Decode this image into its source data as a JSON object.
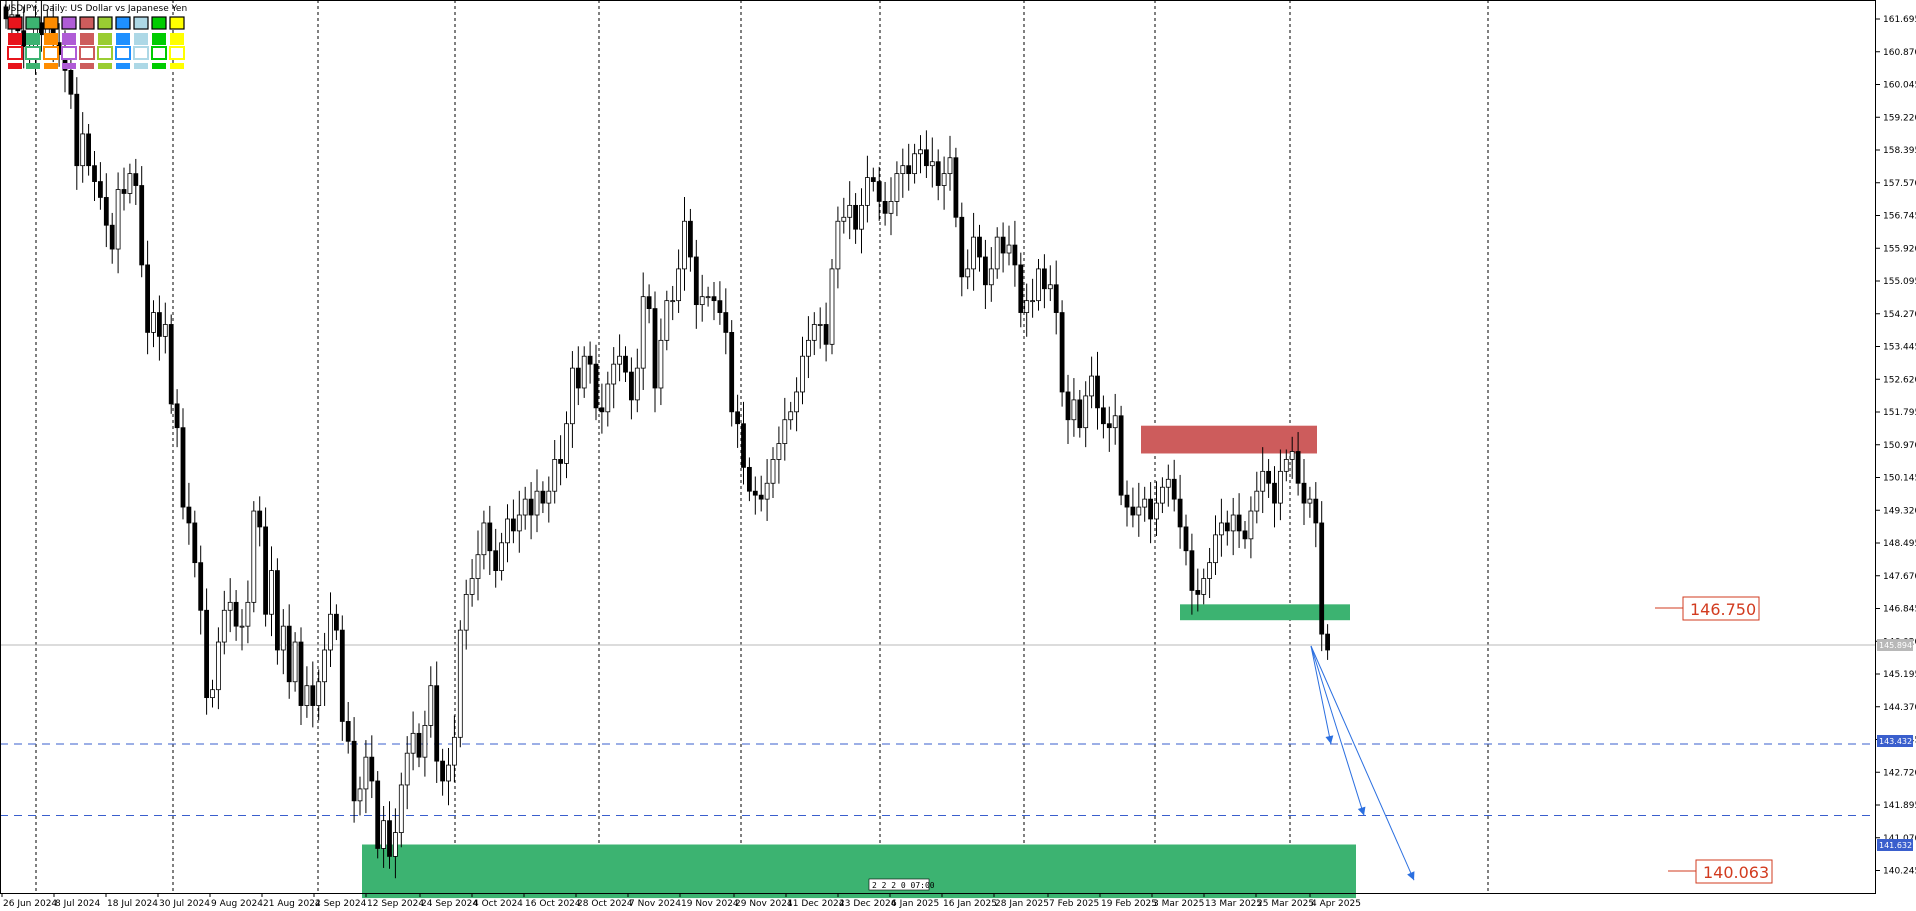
{
  "header": {
    "title": "USDJPY, Daily:  US Dollar vs Japanese Yen"
  },
  "palette": {
    "row1": [
      "#e8141c",
      "#3cb371",
      "#ff8c00",
      "#b05cd6",
      "#cd5c5c",
      "#9acd32",
      "#1e90ff",
      "#add8e6",
      "#00cc00",
      "#ffff00"
    ],
    "row2": [
      "#e8141c",
      "#3cb371",
      "#ff8c00",
      "#b05cd6",
      "#cd5c5c",
      "#9acd32",
      "#1e90ff",
      "#add8e6",
      "#00cc00",
      "#ffff00"
    ],
    "row3": [
      "#e8141c",
      "#3cb371",
      "#ff8c00",
      "#b05cd6",
      "#cd5c5c",
      "#9acd32",
      "#1e90ff",
      "#add8e6",
      "#00cc00",
      "#ffff00"
    ],
    "row4": [
      "#e8141c",
      "#3cb371",
      "#ff8c00",
      "#b05cd6",
      "#cd5c5c",
      "#9acd32",
      "#1e90ff",
      "#add8e6",
      "#00cc00",
      "#ffff00"
    ]
  },
  "chart_data": {
    "type": "candlestick",
    "symbol": "USDJPY",
    "timeframe": "Daily",
    "ylim": [
      139.8,
      162.1
    ],
    "y_ticks": [
      "161.695",
      "160.870",
      "160.045",
      "159.220",
      "158.395",
      "157.570",
      "156.745",
      "155.920",
      "155.095",
      "154.270",
      "153.445",
      "152.620",
      "151.795",
      "150.970",
      "150.145",
      "149.320",
      "148.495",
      "147.670",
      "146.845",
      "146.020",
      "145.195",
      "144.370",
      "143.545",
      "142.720",
      "141.895",
      "141.070",
      "140.245"
    ],
    "x_ticks": [
      "26 Jun 2024",
      "8 Jul 2024",
      "18 Jul 2024",
      "30 Jul 2024",
      "9 Aug 2024",
      "21 Aug 2024",
      "2 Sep 2024",
      "12 Sep 2024",
      "24 Sep 2024",
      "4 Oct 2024",
      "16 Oct 2024",
      "28 Oct 2024",
      "7 Nov 2024",
      "19 Nov 2024",
      "29 Nov 2024",
      "11 Dec 2024",
      "23 Dec 2024",
      "6 Jan 2025",
      "16 Jan 2025",
      "28 Jan 2025",
      "7 Feb 2025",
      "19 Feb 2025",
      "3 Mar 2025",
      "13 Mar 2025",
      "25 Mar 2025",
      "4 Apr 2025"
    ],
    "current_price": "145.894",
    "horizontal_levels": [
      {
        "price": 143.432,
        "label": "143.432",
        "color": "#3a5fcd",
        "style": "dashed"
      },
      {
        "price": 141.632,
        "label": "141.632",
        "color": "#3a5fcd",
        "style": "dashed"
      }
    ],
    "zones": [
      {
        "kind": "resistance",
        "color": "#cd5c5c",
        "top": 151.45,
        "bottom": 150.75
      },
      {
        "kind": "support",
        "color": "#3cb371",
        "top": 146.95,
        "bottom": 146.55,
        "label": "146.750"
      },
      {
        "kind": "support",
        "color": "#3cb371",
        "top": 140.9,
        "bottom": 139.55,
        "label": "140.063"
      }
    ],
    "candle_closes": [
      161.7,
      161.8,
      161.4,
      161.0,
      160.9,
      161.6,
      161.3,
      161.7,
      161.1,
      160.8,
      160.4,
      159.8,
      158.0,
      158.8,
      158.0,
      157.6,
      157.2,
      156.5,
      155.9,
      157.4,
      157.3,
      157.8,
      157.5,
      155.5,
      153.8,
      154.3,
      153.7,
      154.0,
      152.0,
      151.4,
      149.4,
      149.0,
      148.0,
      146.8,
      144.6,
      144.8,
      146.0,
      146.8,
      147.0,
      146.4,
      146.4,
      147.0,
      149.3,
      148.9,
      146.7,
      147.8,
      145.8,
      146.4,
      145.0,
      146.0,
      144.4,
      144.9,
      144.4,
      145.0,
      145.8,
      146.7,
      146.3,
      144.0,
      143.5,
      142.0,
      142.3,
      143.1,
      142.5,
      140.8,
      141.5,
      140.6,
      141.2,
      142.4,
      143.2,
      143.7,
      143.1,
      143.9,
      144.9,
      143.0,
      142.5,
      142.9,
      143.6,
      146.3,
      147.2,
      147.6,
      148.2,
      149.0,
      148.3,
      147.8,
      148.5,
      149.1,
      148.8,
      149.2,
      149.6,
      149.2,
      149.8,
      149.5,
      149.8,
      150.6,
      150.5,
      151.5,
      152.9,
      152.4,
      153.2,
      153.0,
      151.9,
      151.8,
      152.5,
      153.0,
      153.2,
      152.8,
      152.1,
      152.9,
      154.7,
      154.4,
      152.4,
      153.6,
      154.6,
      154.6,
      155.4,
      156.6,
      155.7,
      154.5,
      154.7,
      154.7,
      154.6,
      154.3,
      153.8,
      151.8,
      151.5,
      150.4,
      149.8,
      149.7,
      149.6,
      150.0,
      150.6,
      151.0,
      151.6,
      151.8,
      152.3,
      153.2,
      153.6,
      154.0,
      154.0,
      153.5,
      155.4,
      156.6,
      156.7,
      157.0,
      156.4,
      157.0,
      157.7,
      157.6,
      157.1,
      156.8,
      157.1,
      157.8,
      158.0,
      157.8,
      158.3,
      158.4,
      158.0,
      158.1,
      157.5,
      157.8,
      158.2,
      156.7,
      155.2,
      155.4,
      156.2,
      155.7,
      155.0,
      155.4,
      156.2,
      155.8,
      156.0,
      155.5,
      154.3,
      154.6,
      154.6,
      155.4,
      154.9,
      155.0,
      154.3,
      152.3,
      151.6,
      152.1,
      151.4,
      152.2,
      152.7,
      151.9,
      151.5,
      151.4,
      151.7,
      149.7,
      149.4,
      149.2,
      149.4,
      149.6,
      149.1,
      149.5,
      149.9,
      150.1,
      149.6,
      148.9,
      148.3,
      147.3,
      147.2,
      147.6,
      148.0,
      148.7,
      149.0,
      148.8,
      149.2,
      148.8,
      148.6,
      149.3,
      149.8,
      150.3,
      150.0,
      149.5,
      150.3,
      150.6,
      150.8,
      150.0,
      149.5,
      149.6,
      149.0,
      146.2,
      145.8
    ]
  },
  "annotations": {
    "level_label_1": "146.750",
    "level_label_2": "140.063",
    "axis_tag_current": "145.894",
    "axis_tag_level_1": "143.432",
    "axis_tag_level_2": "141.632",
    "bar_timer": "2 2 2 0 07:00"
  }
}
